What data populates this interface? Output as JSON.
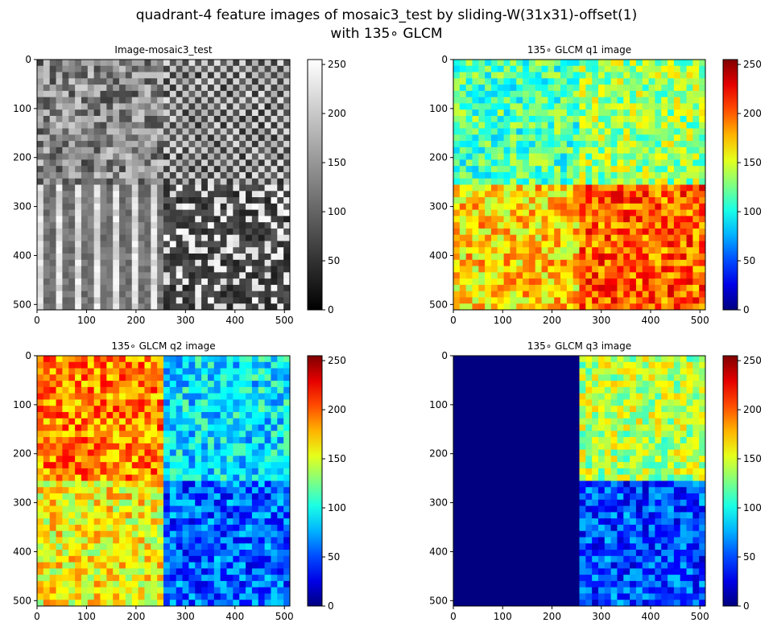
{
  "figure": {
    "title_line1": "quadrant-4 feature images of mosaic3_test by sliding-W(31x31)-offset(1)",
    "title_line2": "with 135∘ GLCM"
  },
  "chart_data": [
    {
      "type": "heatmap",
      "title": "Image-mosaic3_test",
      "colormap": "gray",
      "xlim": [
        0,
        511
      ],
      "ylim": [
        511,
        0
      ],
      "xticks": [
        "0",
        "100",
        "200",
        "300",
        "400",
        "500"
      ],
      "yticks": [
        "0",
        "100",
        "200",
        "300",
        "400",
        "500"
      ],
      "colorbar_range": [
        0,
        255
      ],
      "colorbar_ticks": [
        "0",
        "50",
        "100",
        "150",
        "200",
        "250"
      ],
      "quadrants": [
        {
          "region": "top-left",
          "texture": "rough mottled stone"
        },
        {
          "region": "top-right",
          "texture": "woven grid"
        },
        {
          "region": "bottom-left",
          "texture": "vertical wood grain"
        },
        {
          "region": "bottom-right",
          "texture": "dark speckled"
        }
      ]
    },
    {
      "type": "heatmap",
      "title": "135∘ GLCM q1 image",
      "colormap": "jet",
      "xlim": [
        0,
        511
      ],
      "ylim": [
        511,
        0
      ],
      "xticks": [
        "0",
        "100",
        "200",
        "300",
        "400",
        "500"
      ],
      "yticks": [
        "0",
        "100",
        "200",
        "300",
        "400",
        "500"
      ],
      "colorbar_range": [
        0,
        255
      ],
      "colorbar_ticks": [
        "0",
        "50",
        "100",
        "150",
        "200",
        "250"
      ],
      "quadrant_levels": {
        "top-left": 115,
        "top-right": 135,
        "bottom-left": 170,
        "bottom-right": 200
      }
    },
    {
      "type": "heatmap",
      "title": "135∘ GLCM q2 image",
      "colormap": "jet",
      "xlim": [
        0,
        511
      ],
      "ylim": [
        511,
        0
      ],
      "xticks": [
        "0",
        "100",
        "200",
        "300",
        "400",
        "500"
      ],
      "yticks": [
        "0",
        "100",
        "200",
        "300",
        "400",
        "500"
      ],
      "colorbar_range": [
        0,
        255
      ],
      "colorbar_ticks": [
        "0",
        "50",
        "100",
        "150",
        "200",
        "250"
      ],
      "quadrant_levels": {
        "top-left": 190,
        "top-right": 90,
        "bottom-left": 160,
        "bottom-right": 55
      }
    },
    {
      "type": "heatmap",
      "title": "135∘ GLCM q3 image",
      "colormap": "jet",
      "xlim": [
        0,
        511
      ],
      "ylim": [
        511,
        0
      ],
      "xticks": [
        "0",
        "100",
        "200",
        "300",
        "400",
        "500"
      ],
      "yticks": [
        "0",
        "100",
        "200",
        "300",
        "400",
        "500"
      ],
      "colorbar_range": [
        0,
        255
      ],
      "colorbar_ticks": [
        "0",
        "50",
        "100",
        "150",
        "200",
        "250"
      ],
      "quadrant_levels": {
        "top-left": 0,
        "top-right": 140,
        "bottom-left": 0,
        "bottom-right": 50
      }
    }
  ]
}
